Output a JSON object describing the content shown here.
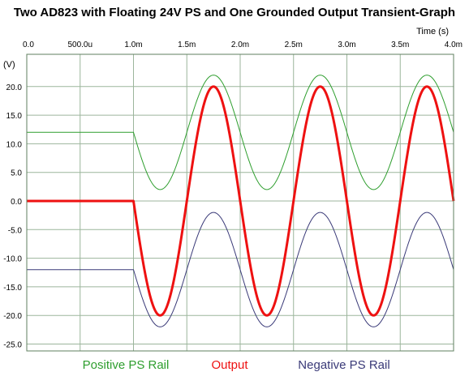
{
  "chart_data": {
    "type": "line",
    "title": "Two AD823 with Floating 24V PS and One Grounded Output Transient-Graph",
    "xlabel": "Time  (s)",
    "ylabel": "(V)",
    "xlim": [
      0,
      0.004
    ],
    "ylim": [
      -26,
      25
    ],
    "grid": true,
    "legend_position": "bottom",
    "x_ticks": [
      {
        "value": 0,
        "label": "0.0"
      },
      {
        "value": 0.0005,
        "label": "500.0u"
      },
      {
        "value": 0.001,
        "label": "1.0m"
      },
      {
        "value": 0.0015,
        "label": "1.5m"
      },
      {
        "value": 0.002,
        "label": "2.0m"
      },
      {
        "value": 0.0025,
        "label": "2.5m"
      },
      {
        "value": 0.003,
        "label": "3.0m"
      },
      {
        "value": 0.0035,
        "label": "3.5m"
      },
      {
        "value": 0.004,
        "label": "4.0m"
      }
    ],
    "y_ticks": [
      {
        "value": 20,
        "label": "20.0"
      },
      {
        "value": 15,
        "label": "15.0"
      },
      {
        "value": 10,
        "label": "10.0"
      },
      {
        "value": 5,
        "label": "5.0"
      },
      {
        "value": 0,
        "label": "0.0"
      },
      {
        "value": -5,
        "label": "-5.0"
      },
      {
        "value": -10,
        "label": "-10.0"
      },
      {
        "value": -15,
        "label": "-15.0"
      },
      {
        "value": -20,
        "label": "-20.0"
      },
      {
        "value": -25,
        "label": "-25.0"
      }
    ],
    "series": [
      {
        "name": "Positive PS Rail",
        "color": "#2e9e2e",
        "x": [
          0,
          0.001,
          0.00125,
          0.0015,
          0.00175,
          0.002,
          0.00225,
          0.0025,
          0.00275,
          0.003,
          0.00325,
          0.0035,
          0.00375,
          0.004
        ],
        "y": [
          12,
          12,
          2,
          12,
          22,
          12,
          2,
          12,
          22,
          12,
          2,
          12,
          22,
          12
        ]
      },
      {
        "name": "Output",
        "color": "#ee1111",
        "x": [
          0,
          0.001,
          0.00125,
          0.0015,
          0.00175,
          0.002,
          0.00225,
          0.0025,
          0.00275,
          0.003,
          0.00325,
          0.0035,
          0.00375,
          0.004
        ],
        "y": [
          0,
          0,
          -20,
          0,
          20,
          0,
          -20,
          0,
          20,
          0,
          -20,
          0,
          20,
          0
        ]
      },
      {
        "name": "Negative PS Rail",
        "color": "#3a3a78",
        "x": [
          0,
          0.001,
          0.00125,
          0.0015,
          0.00175,
          0.002,
          0.00225,
          0.0025,
          0.00275,
          0.003,
          0.00325,
          0.0035,
          0.00375,
          0.004
        ],
        "y": [
          -12,
          -12,
          -22,
          -12,
          -2,
          -12,
          -22,
          -12,
          -2,
          -12,
          -22,
          -12,
          -2,
          -12
        ]
      }
    ]
  },
  "colors": {
    "grid": "#9cb59c",
    "frame": "#5f7f5f"
  }
}
